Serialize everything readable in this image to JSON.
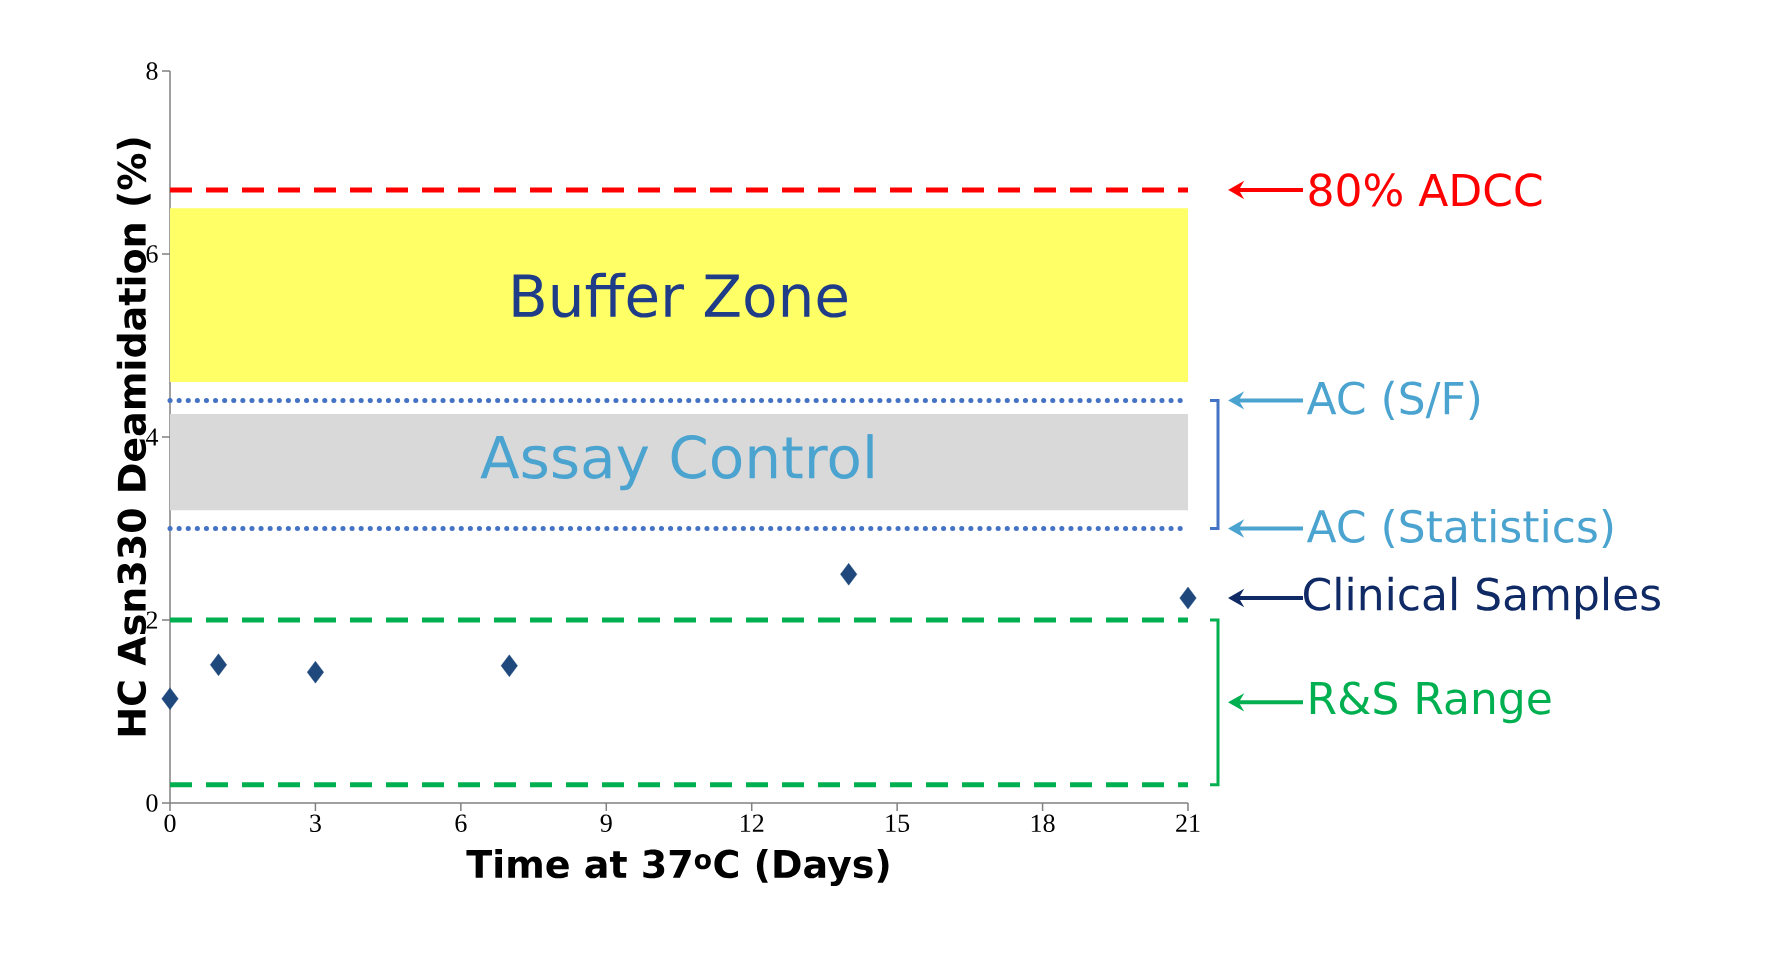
{
  "chart_data": {
    "type": "scatter",
    "xlabel": "Time at 37$^{o}$C (Days)",
    "ylabel": "HC Asn330 Deamidation (%)",
    "x": [
      0,
      1,
      3,
      7,
      14,
      21
    ],
    "values": [
      1.14,
      1.51,
      1.43,
      1.5,
      2.5,
      2.24
    ],
    "color": "#1f497d",
    "marker": "diamond",
    "xlim": [
      0,
      21
    ],
    "ylim": [
      0,
      8
    ],
    "xticks": [
      0,
      3,
      6,
      9,
      12,
      15,
      18,
      21
    ],
    "yticks": [
      0,
      2,
      4,
      6,
      8
    ],
    "ref_lines": [
      {
        "axis": "y",
        "value": 6.7,
        "label": "80% ADCC",
        "color": "#ff0000",
        "line_style": "dashed"
      },
      {
        "axis": "y",
        "value": 4.4,
        "label": "AC (S/F)",
        "color": "#4472c4",
        "line_style": "dotted"
      },
      {
        "axis": "y",
        "value": 3.0,
        "label": "AC (Statistics)",
        "color": "#4472c4",
        "line_style": "dotted"
      },
      {
        "axis": "y",
        "value": 2.0,
        "color": "#00b050",
        "line_style": "dashed"
      },
      {
        "axis": "y",
        "value": 0.2,
        "color": "#00b050",
        "line_style": "dashed"
      }
    ],
    "bands": [
      {
        "axis": "y",
        "from": 4.6,
        "to": 6.5,
        "label": "Buffer Zone",
        "color": "#ffff66"
      },
      {
        "axis": "y",
        "from": 3.2,
        "to": 4.25,
        "label": "Assay Control",
        "color": "#d9d9d9"
      }
    ],
    "annotations": [
      {
        "text": "Clinical Samples",
        "x": 21,
        "y": 2.24
      },
      "R&S Range"
    ]
  }
}
